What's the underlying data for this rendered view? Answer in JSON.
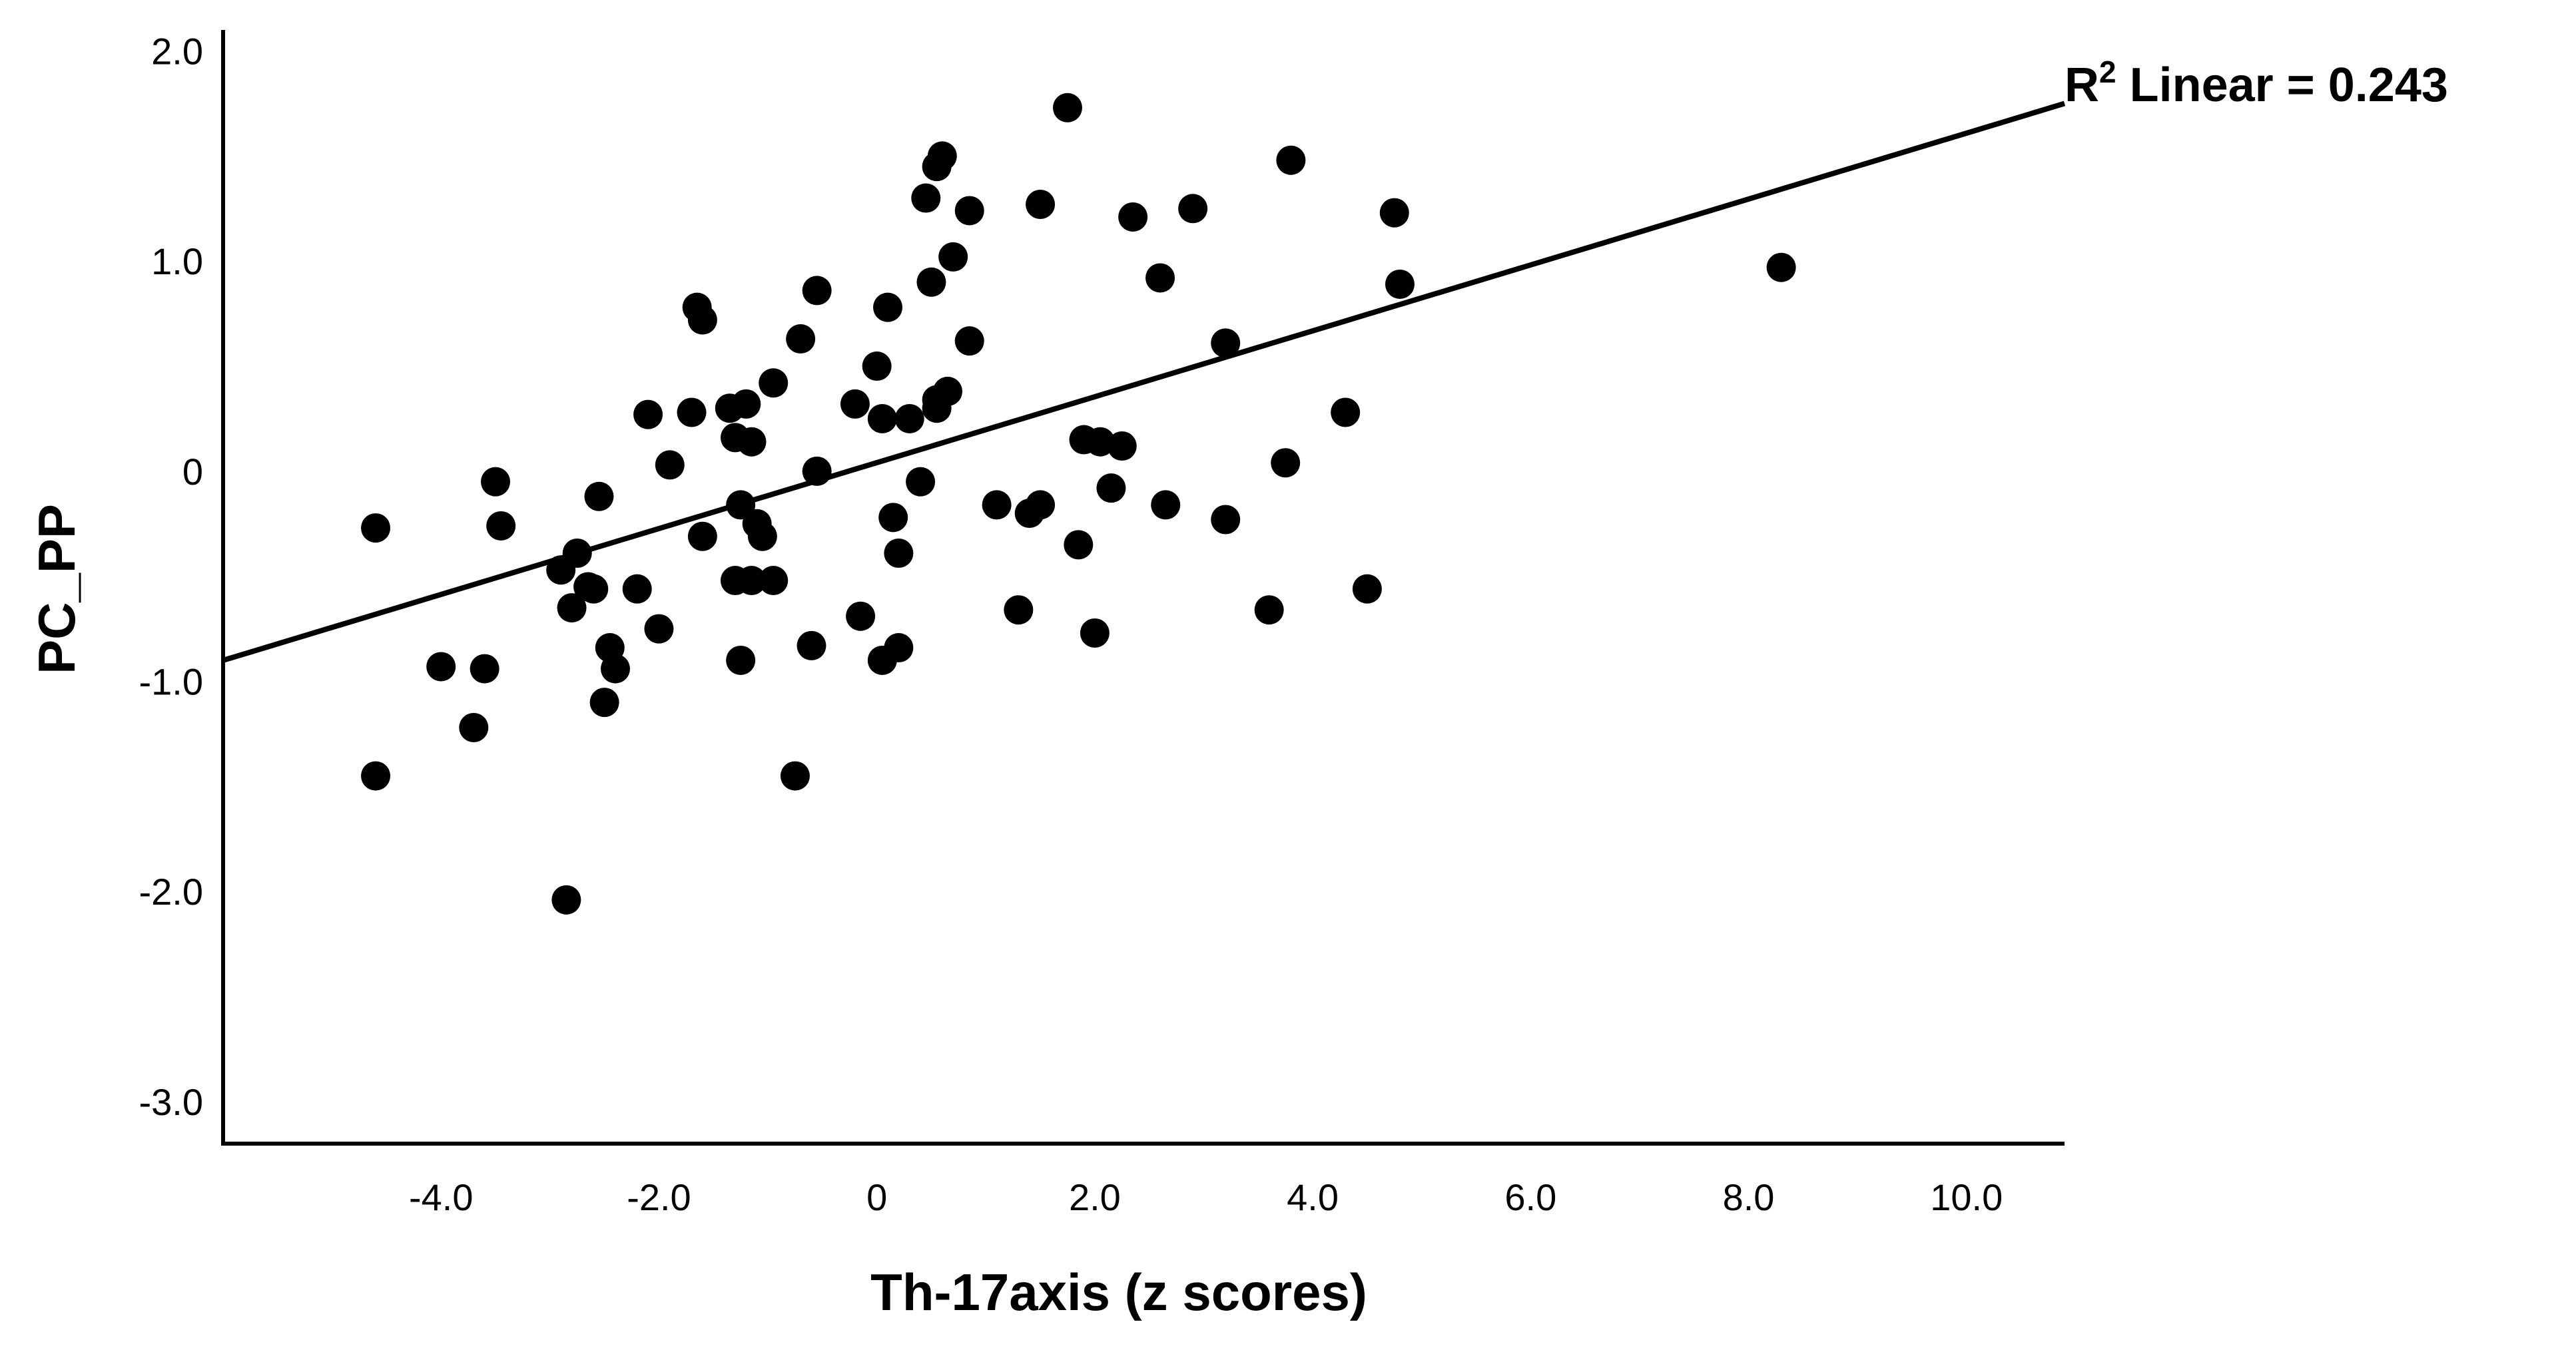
{
  "chart_data": {
    "type": "scatter",
    "xlabel": "Th-17axis (z scores)",
    "ylabel": "PC_PP",
    "xlim": [
      -6.0,
      10.9
    ],
    "ylim": [
      -3.2,
      2.1
    ],
    "x_ticks": [
      -4.0,
      -2.0,
      0.0,
      2.0,
      4.0,
      6.0,
      8.0,
      10.0
    ],
    "x_tick_labels": [
      "-4.0",
      "-2.0",
      "0",
      "2.0",
      "4.0",
      "6.0",
      "8.0",
      "10.0"
    ],
    "y_ticks": [
      2.0,
      1.0,
      0.0,
      -1.0,
      -2.0,
      -3.0
    ],
    "y_tick_labels": [
      "2.0",
      "1.0",
      "0",
      "-1.0",
      "-2.0",
      "-3.0"
    ],
    "grid": false,
    "fit_line": {
      "type": "linear",
      "x": [
        -6.0,
        10.9
      ],
      "y": [
        -0.9,
        1.75
      ],
      "label_main": "R",
      "label_sup": "2",
      "label_rest": " Linear = 0.243"
    },
    "points": [
      [
        -4.6,
        -0.27
      ],
      [
        -4.6,
        -1.45
      ],
      [
        -4.0,
        -0.93
      ],
      [
        -3.7,
        -1.22
      ],
      [
        -3.6,
        -0.94
      ],
      [
        -3.5,
        -0.05
      ],
      [
        -3.45,
        -0.26
      ],
      [
        -2.9,
        -0.47
      ],
      [
        -2.85,
        -2.04
      ],
      [
        -2.8,
        -0.65
      ],
      [
        -2.75,
        -0.39
      ],
      [
        -2.65,
        -0.55
      ],
      [
        -2.6,
        -0.56
      ],
      [
        -2.55,
        -0.12
      ],
      [
        -2.5,
        -1.1
      ],
      [
        -2.45,
        -0.84
      ],
      [
        -2.4,
        -0.94
      ],
      [
        -2.2,
        -0.56
      ],
      [
        -2.1,
        0.27
      ],
      [
        -2.0,
        -0.75
      ],
      [
        -1.9,
        0.03
      ],
      [
        -1.7,
        0.28
      ],
      [
        -1.65,
        0.78
      ],
      [
        -1.6,
        0.72
      ],
      [
        -1.6,
        -0.31
      ],
      [
        -1.35,
        0.3
      ],
      [
        -1.3,
        0.16
      ],
      [
        -1.3,
        -0.52
      ],
      [
        -1.25,
        -0.16
      ],
      [
        -1.25,
        -0.9
      ],
      [
        -1.2,
        0.32
      ],
      [
        -1.15,
        0.14
      ],
      [
        -1.15,
        -0.52
      ],
      [
        -1.1,
        -0.25
      ],
      [
        -1.05,
        -0.31
      ],
      [
        -0.95,
        0.42
      ],
      [
        -0.95,
        -0.52
      ],
      [
        -0.75,
        -1.45
      ],
      [
        -0.7,
        0.63
      ],
      [
        -0.6,
        -0.83
      ],
      [
        -0.55,
        0.86
      ],
      [
        -0.55,
        0.0
      ],
      [
        -0.2,
        0.32
      ],
      [
        -0.15,
        -0.69
      ],
      [
        0.0,
        0.5
      ],
      [
        0.05,
        0.25
      ],
      [
        0.05,
        -0.9
      ],
      [
        0.1,
        0.78
      ],
      [
        0.15,
        -0.22
      ],
      [
        0.2,
        -0.84
      ],
      [
        0.2,
        -0.39
      ],
      [
        0.3,
        0.25
      ],
      [
        0.4,
        -0.05
      ],
      [
        0.45,
        1.3
      ],
      [
        0.5,
        0.9
      ],
      [
        0.55,
        0.3
      ],
      [
        0.55,
        1.45
      ],
      [
        0.55,
        0.34
      ],
      [
        0.6,
        1.5
      ],
      [
        0.65,
        0.38
      ],
      [
        0.7,
        1.02
      ],
      [
        0.85,
        1.24
      ],
      [
        0.85,
        0.62
      ],
      [
        1.1,
        -0.16
      ],
      [
        1.3,
        -0.66
      ],
      [
        1.4,
        -0.2
      ],
      [
        1.5,
        -0.16
      ],
      [
        1.5,
        1.27
      ],
      [
        1.75,
        1.73
      ],
      [
        1.85,
        -0.35
      ],
      [
        1.9,
        0.15
      ],
      [
        2.0,
        -0.77
      ],
      [
        2.05,
        0.14
      ],
      [
        2.15,
        -0.08
      ],
      [
        2.25,
        0.12
      ],
      [
        2.35,
        1.21
      ],
      [
        2.6,
        0.92
      ],
      [
        2.65,
        -0.16
      ],
      [
        2.9,
        1.25
      ],
      [
        3.2,
        0.61
      ],
      [
        3.2,
        -0.23
      ],
      [
        3.6,
        -0.66
      ],
      [
        3.75,
        0.04
      ],
      [
        3.8,
        1.48
      ],
      [
        4.3,
        0.28
      ],
      [
        4.5,
        -0.56
      ],
      [
        4.75,
        1.23
      ],
      [
        4.8,
        0.89
      ],
      [
        8.3,
        0.97
      ]
    ]
  }
}
